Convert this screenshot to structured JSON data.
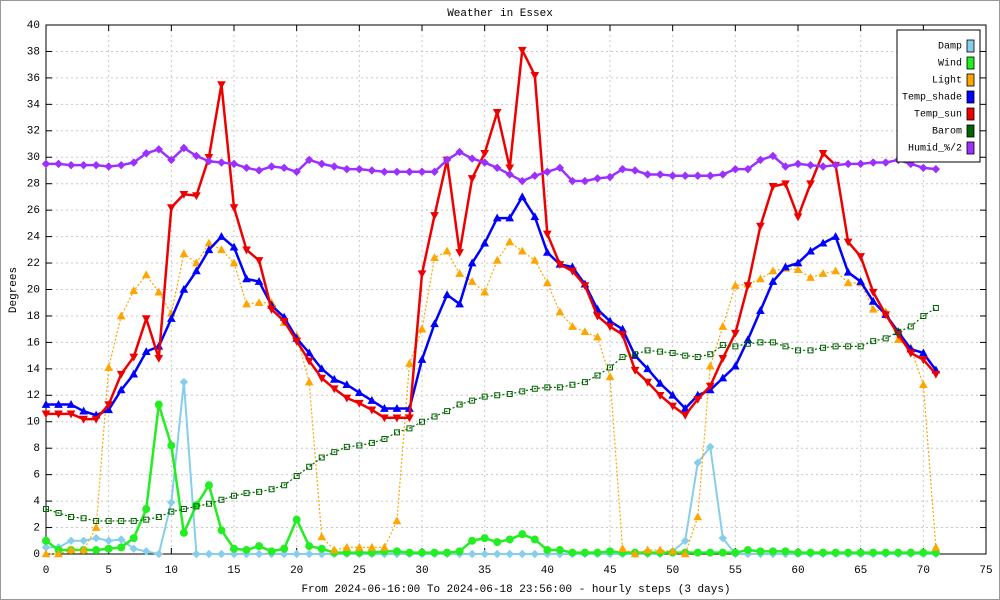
{
  "chart_data": {
    "type": "line",
    "title": "Weather in Essex",
    "y_label": "Degrees",
    "x_label": "From 2024-06-16:00 To 2024-06-18 23:56:00 - hourly steps (3 days)",
    "grid": true,
    "legend": "top-right",
    "xlim": [
      0,
      75
    ],
    "xticks": [
      0,
      5,
      10,
      15,
      20,
      25,
      30,
      35,
      40,
      45,
      50,
      55,
      60,
      65,
      70,
      75
    ],
    "ylim": [
      0,
      40
    ],
    "yticks": [
      0,
      2,
      4,
      6,
      8,
      10,
      12,
      14,
      16,
      18,
      20,
      22,
      24,
      26,
      28,
      30,
      32,
      34,
      36,
      38,
      40
    ],
    "x": [
      0,
      1,
      2,
      3,
      4,
      5,
      6,
      7,
      8,
      9,
      10,
      11,
      12,
      13,
      14,
      15,
      16,
      17,
      18,
      19,
      20,
      21,
      22,
      23,
      24,
      25,
      26,
      27,
      28,
      29,
      30,
      31,
      32,
      33,
      34,
      35,
      36,
      37,
      38,
      39,
      40,
      41,
      42,
      43,
      44,
      45,
      46,
      47,
      48,
      49,
      50,
      51,
      52,
      53,
      54,
      55,
      56,
      57,
      58,
      59,
      60,
      61,
      62,
      63,
      64,
      65,
      66,
      67,
      68,
      69,
      70,
      71
    ],
    "series": [
      {
        "name": "Damp",
        "color": "#87ceeb",
        "line": "solid",
        "marker": "diamond",
        "values": [
          0.5,
          0.5,
          1,
          1,
          1.2,
          1,
          1.1,
          0.4,
          0.2,
          0,
          3.9,
          13,
          0,
          0,
          0,
          0,
          0,
          0,
          0,
          0,
          0,
          0,
          0,
          0,
          0,
          0,
          0,
          0,
          0,
          0,
          0,
          0,
          0,
          0,
          0,
          0,
          0,
          0,
          0,
          0,
          0,
          0,
          0,
          0,
          0,
          0,
          0,
          0,
          0,
          0,
          0.2,
          1,
          6.9,
          8.1,
          1.2,
          0,
          0,
          0,
          0,
          0,
          0,
          0,
          0,
          0,
          0,
          0,
          0,
          0,
          0,
          0,
          0,
          0
        ]
      },
      {
        "name": "Wind",
        "color": "#22ee22",
        "line": "thick",
        "marker": "circle",
        "values": [
          1,
          0.3,
          0.3,
          0.3,
          0.3,
          0.4,
          0.5,
          1.2,
          3.4,
          11.3,
          8.2,
          1.6,
          3.7,
          5.2,
          1.8,
          0.4,
          0.3,
          0.6,
          0.2,
          0.4,
          2.6,
          0.6,
          0.4,
          0.1,
          0.1,
          0.1,
          0.1,
          0.2,
          0.2,
          0.1,
          0.1,
          0.1,
          0.1,
          0.2,
          1,
          1.2,
          0.9,
          1.1,
          1.5,
          1.1,
          0.3,
          0.3,
          0.1,
          0.1,
          0.1,
          0.2,
          0.1,
          0.1,
          0.1,
          0.1,
          0.1,
          0.1,
          0.1,
          0.1,
          0.1,
          0.1,
          0.3,
          0.2,
          0.2,
          0.2,
          0.1,
          0.1,
          0.1,
          0.1,
          0.1,
          0.1,
          0.1,
          0.1,
          0.1,
          0.1,
          0.1,
          0.1
        ]
      },
      {
        "name": "Light",
        "color": "#ffa500",
        "line": "dotted",
        "marker": "triangle-up",
        "values": [
          0,
          0,
          0.3,
          0.3,
          2,
          14.1,
          18,
          19.9,
          21.1,
          19.8,
          18.2,
          22.7,
          22,
          23.5,
          23,
          22,
          18.9,
          19,
          19,
          17.5,
          16.5,
          13,
          1.3,
          0.3,
          0.5,
          0.5,
          0.5,
          0.5,
          2.5,
          14.4,
          17,
          22.4,
          22.9,
          21.2,
          20.6,
          19.8,
          22.2,
          23.6,
          22.9,
          22.2,
          20.5,
          18.3,
          17.2,
          16.8,
          16.4,
          13.4,
          0.4,
          0,
          0.3,
          0.3,
          0.2,
          0,
          2.8,
          14.2,
          17.2,
          20.3,
          20.4,
          20.8,
          21.4,
          21.6,
          21.5,
          20.9,
          21.2,
          21.4,
          20.5,
          20.5,
          18.5,
          18.3,
          16.2,
          15.6,
          12.8,
          0.5
        ]
      },
      {
        "name": "Temp_shade",
        "color": "#0000ff",
        "line": "thick",
        "marker": "triangle-up",
        "values": [
          11.3,
          11.3,
          11.3,
          10.8,
          10.5,
          10.9,
          12.4,
          13.6,
          15.3,
          15.7,
          17.8,
          20,
          21.4,
          23,
          24,
          23.2,
          20.8,
          20.6,
          18.8,
          17.9,
          16.3,
          15.2,
          14,
          13.2,
          12.8,
          12.2,
          11.6,
          11,
          11,
          11,
          14.7,
          17.4,
          19.6,
          18.9,
          22,
          23.5,
          25.4,
          25.4,
          27,
          25.5,
          22.8,
          21.9,
          21.7,
          20.4,
          18.5,
          17.6,
          17,
          15,
          14,
          12.9,
          12,
          11,
          12,
          12.4,
          13.3,
          14.2,
          16.2,
          18.4,
          20.6,
          21.7,
          22,
          22.9,
          23.5,
          24,
          21.3,
          20.6,
          19.1,
          18.1,
          16.8,
          15.5,
          15.2,
          13.9
        ]
      },
      {
        "name": "Temp_sun",
        "color": "#ee0000",
        "line": "thick",
        "marker": "triangle-down",
        "values": [
          10.6,
          10.6,
          10.6,
          10.2,
          10.2,
          11.3,
          13.6,
          14.9,
          17.8,
          14.8,
          26.2,
          27.2,
          27.1,
          30,
          35.5,
          26.2,
          23,
          22.2,
          18.5,
          17.6,
          16.1,
          14.6,
          13.3,
          12.5,
          11.8,
          11.4,
          10.9,
          10.3,
          10.3,
          10.3,
          21.2,
          25.6,
          29.8,
          22.8,
          28.4,
          30.3,
          33.4,
          29.2,
          38.1,
          36.2,
          24.2,
          21.9,
          21.4,
          20.3,
          18,
          17.2,
          16.6,
          13.9,
          13,
          12,
          11.2,
          10.5,
          11.7,
          12.7,
          14.8,
          16.7,
          20.3,
          24.8,
          27.8,
          28,
          25.5,
          28,
          30.3,
          29.4,
          23.6,
          22.5,
          19.8,
          18.1,
          16.6,
          15.2,
          14.7,
          13.6
        ]
      },
      {
        "name": "Barom",
        "color": "#006400",
        "line": "dotted",
        "marker": "square-open",
        "values": [
          3.4,
          3.1,
          2.8,
          2.7,
          2.5,
          2.5,
          2.5,
          2.5,
          2.6,
          2.8,
          3.2,
          3.4,
          3.6,
          3.8,
          4.1,
          4.4,
          4.6,
          4.7,
          4.9,
          5.2,
          5.9,
          6.6,
          7.3,
          7.7,
          8.1,
          8.2,
          8.4,
          8.7,
          9.2,
          9.5,
          10,
          10.4,
          10.8,
          11.3,
          11.6,
          11.9,
          12,
          12.1,
          12.3,
          12.5,
          12.6,
          12.6,
          12.8,
          13,
          13.5,
          14.1,
          14.9,
          15.1,
          15.4,
          15.3,
          15.2,
          15,
          14.9,
          15.1,
          15.8,
          15.7,
          15.9,
          16,
          16,
          15.7,
          15.4,
          15.4,
          15.6,
          15.7,
          15.7,
          15.7,
          16.1,
          16.3,
          16.8,
          17.2,
          18,
          18.6
        ]
      },
      {
        "name": "Humid_%/2",
        "color": "#9b30ff",
        "line": "thick",
        "marker": "diamond",
        "values": [
          29.5,
          29.5,
          29.4,
          29.4,
          29.4,
          29.3,
          29.4,
          29.6,
          30.3,
          30.6,
          29.8,
          30.7,
          30.1,
          29.7,
          29.6,
          29.5,
          29.2,
          29,
          29.3,
          29.2,
          28.9,
          29.8,
          29.5,
          29.3,
          29.1,
          29.1,
          29,
          28.9,
          28.9,
          28.9,
          28.9,
          28.9,
          29.8,
          30.4,
          29.9,
          29.6,
          29.2,
          28.7,
          28.2,
          28.6,
          28.9,
          29.2,
          28.2,
          28.2,
          28.4,
          28.5,
          29.1,
          29,
          28.7,
          28.7,
          28.6,
          28.6,
          28.6,
          28.6,
          28.7,
          29.1,
          29.1,
          29.8,
          30.1,
          29.3,
          29.5,
          29.4,
          29.3,
          29.4,
          29.5,
          29.5,
          29.6,
          29.6,
          29.8,
          29.5,
          29.2,
          29.1
        ]
      }
    ]
  }
}
